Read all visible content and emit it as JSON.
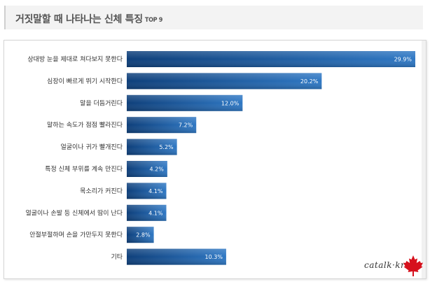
{
  "header": {
    "title": "거짓말할 때 나타나는 신체 특징",
    "title_suffix": "TOP 9"
  },
  "brand": {
    "text": "catalk·kr",
    "icon": "maple-leaf-icon",
    "icon_color": "#d6111d"
  },
  "colors": {
    "bar_dark": "#0e3f7a",
    "bar_light": "#2f78c4"
  },
  "chart_data": {
    "type": "bar",
    "orientation": "horizontal",
    "title": "거짓말할 때 나타나는 신체 특징 TOP 9",
    "categories": [
      "상대방 눈을 제대로 쳐다보지 못한다",
      "심장이 빠르게 뛰기 시작한다",
      "말을 더듬거린다",
      "말하는 속도가 점점 빨라진다",
      "얼굴이나 귀가 빨개진다",
      "특정 신체 부위를 계속 만진다",
      "목소리가 커진다",
      "얼굴이나 손발 등 신체에서 땀이 난다",
      "안절부절하며 손을 가만두지 못한다",
      "기타"
    ],
    "values": [
      29.9,
      20.2,
      12.0,
      7.2,
      5.2,
      4.2,
      4.1,
      4.1,
      2.8,
      10.3
    ],
    "value_labels": [
      "29.9%",
      "20.2%",
      "12.0%",
      "7.2%",
      "5.2%",
      "4.2%",
      "4.1%",
      "4.1%",
      "2.8%",
      "10.3%"
    ],
    "unit": "%",
    "xlim": [
      0,
      29.9
    ],
    "grid": false,
    "legend": "none"
  }
}
